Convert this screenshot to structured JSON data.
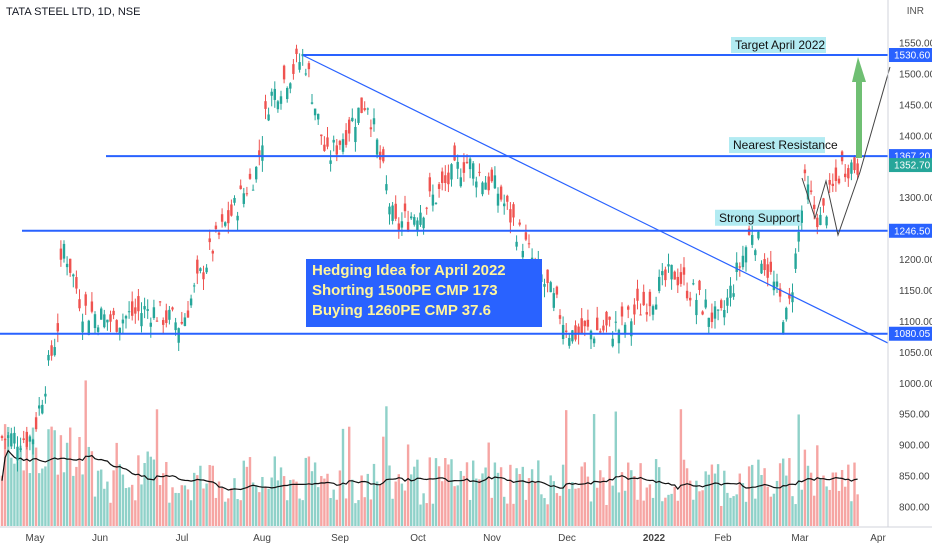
{
  "header": {
    "title": "TATA STEEL LTD, 1D, NSE",
    "currency": "INR"
  },
  "chart_data": {
    "type": "candlestick",
    "symbol": "TATA STEEL LTD",
    "interval": "1D",
    "exchange": "NSE",
    "currency": "INR",
    "ylim": [
      790,
      1580
    ],
    "y_ticks": [
      800,
      850,
      900,
      950,
      1000,
      1050,
      1100,
      1150,
      1200,
      1250,
      1300,
      1350,
      1400,
      1450,
      1500,
      1550
    ],
    "x_ticks": [
      "May",
      "Jun",
      "Jul",
      "Aug",
      "Sep",
      "Oct",
      "Nov",
      "Dec",
      "2022",
      "Feb",
      "Mar",
      "Apr"
    ],
    "grid": false,
    "price_labels": [
      {
        "value": 1530.6,
        "text": "1530.60",
        "color": "#2962ff"
      },
      {
        "value": 1367.2,
        "text": "1367.20",
        "color": "#2962ff"
      },
      {
        "value": 1352.7,
        "text": "1352.70",
        "color": "#26a69a"
      },
      {
        "value": 1246.5,
        "text": "1246.50",
        "color": "#2962ff"
      },
      {
        "value": 1080.05,
        "text": "1080.05",
        "color": "#2962ff"
      }
    ],
    "horizontal_lines": [
      1530.6,
      1367.2,
      1246.5,
      1080.05
    ],
    "annotations": [
      {
        "text": "Target April 2022",
        "price": 1530.6
      },
      {
        "text": "Nearest Resistance",
        "price": 1367.2
      },
      {
        "text": "Strong Support",
        "price": 1246.5
      }
    ],
    "hedge_box": [
      "Hedging Idea for April 2022",
      "Shorting 1500PE CMP 173",
      "Buying 1260PE CMP 37.6"
    ],
    "series": [
      {
        "type": "volume_moving_average"
      }
    ],
    "candles": [
      {
        "date": "2021-04-30",
        "open": 900,
        "high": 920,
        "low": 895,
        "close": 912
      },
      {
        "date": "2021-05-10",
        "open": 1050,
        "high": 1100,
        "low": 1040,
        "close": 1090
      },
      {
        "date": "2021-05-12",
        "open": 1200,
        "high": 1245,
        "low": 1180,
        "close": 1230
      },
      {
        "date": "2021-05-20",
        "open": 1150,
        "high": 1165,
        "low": 1110,
        "close": 1120
      },
      {
        "date": "2021-06-01",
        "open": 1090,
        "high": 1110,
        "low": 1075,
        "close": 1100
      },
      {
        "date": "2021-06-15",
        "open": 1110,
        "high": 1130,
        "low": 1095,
        "close": 1120
      },
      {
        "date": "2021-06-28",
        "open": 1080,
        "high": 1100,
        "low": 1055,
        "close": 1095
      },
      {
        "date": "2021-07-10",
        "open": 1200,
        "high": 1225,
        "low": 1190,
        "close": 1215
      },
      {
        "date": "2021-07-28",
        "open": 1310,
        "high": 1350,
        "low": 1300,
        "close": 1345
      },
      {
        "date": "2021-08-02",
        "open": 1400,
        "high": 1470,
        "low": 1390,
        "close": 1460
      },
      {
        "date": "2021-08-16",
        "open": 1500,
        "high": 1540,
        "low": 1480,
        "close": 1530
      },
      {
        "date": "2021-08-25",
        "open": 1380,
        "high": 1400,
        "low": 1310,
        "close": 1360
      },
      {
        "date": "2021-09-10",
        "open": 1440,
        "high": 1480,
        "low": 1420,
        "close": 1460
      },
      {
        "date": "2021-09-21",
        "open": 1340,
        "high": 1350,
        "low": 1230,
        "close": 1250
      },
      {
        "date": "2021-10-08",
        "open": 1290,
        "high": 1320,
        "low": 1270,
        "close": 1305
      },
      {
        "date": "2021-10-19",
        "open": 1420,
        "high": 1430,
        "low": 1350,
        "close": 1360
      },
      {
        "date": "2021-11-01",
        "open": 1300,
        "high": 1320,
        "low": 1280,
        "close": 1310
      },
      {
        "date": "2021-11-17",
        "open": 1230,
        "high": 1240,
        "low": 1160,
        "close": 1180
      },
      {
        "date": "2021-11-30",
        "open": 1090,
        "high": 1100,
        "low": 1060,
        "close": 1080
      },
      {
        "date": "2021-12-20",
        "open": 1100,
        "high": 1120,
        "low": 1065,
        "close": 1090
      },
      {
        "date": "2022-01-10",
        "open": 1170,
        "high": 1190,
        "low": 1150,
        "close": 1180
      },
      {
        "date": "2022-01-28",
        "open": 1180,
        "high": 1200,
        "low": 1080,
        "close": 1095
      },
      {
        "date": "2022-02-10",
        "open": 1230,
        "high": 1260,
        "low": 1220,
        "close": 1250
      },
      {
        "date": "2022-02-24",
        "open": 1090,
        "high": 1110,
        "low": 1070,
        "close": 1100
      },
      {
        "date": "2022-03-03",
        "open": 1300,
        "high": 1340,
        "low": 1280,
        "close": 1320
      },
      {
        "date": "2022-03-09",
        "open": 1240,
        "high": 1270,
        "low": 1230,
        "close": 1260
      },
      {
        "date": "2022-03-18",
        "open": 1330,
        "high": 1355,
        "low": 1320,
        "close": 1352.7
      }
    ]
  }
}
